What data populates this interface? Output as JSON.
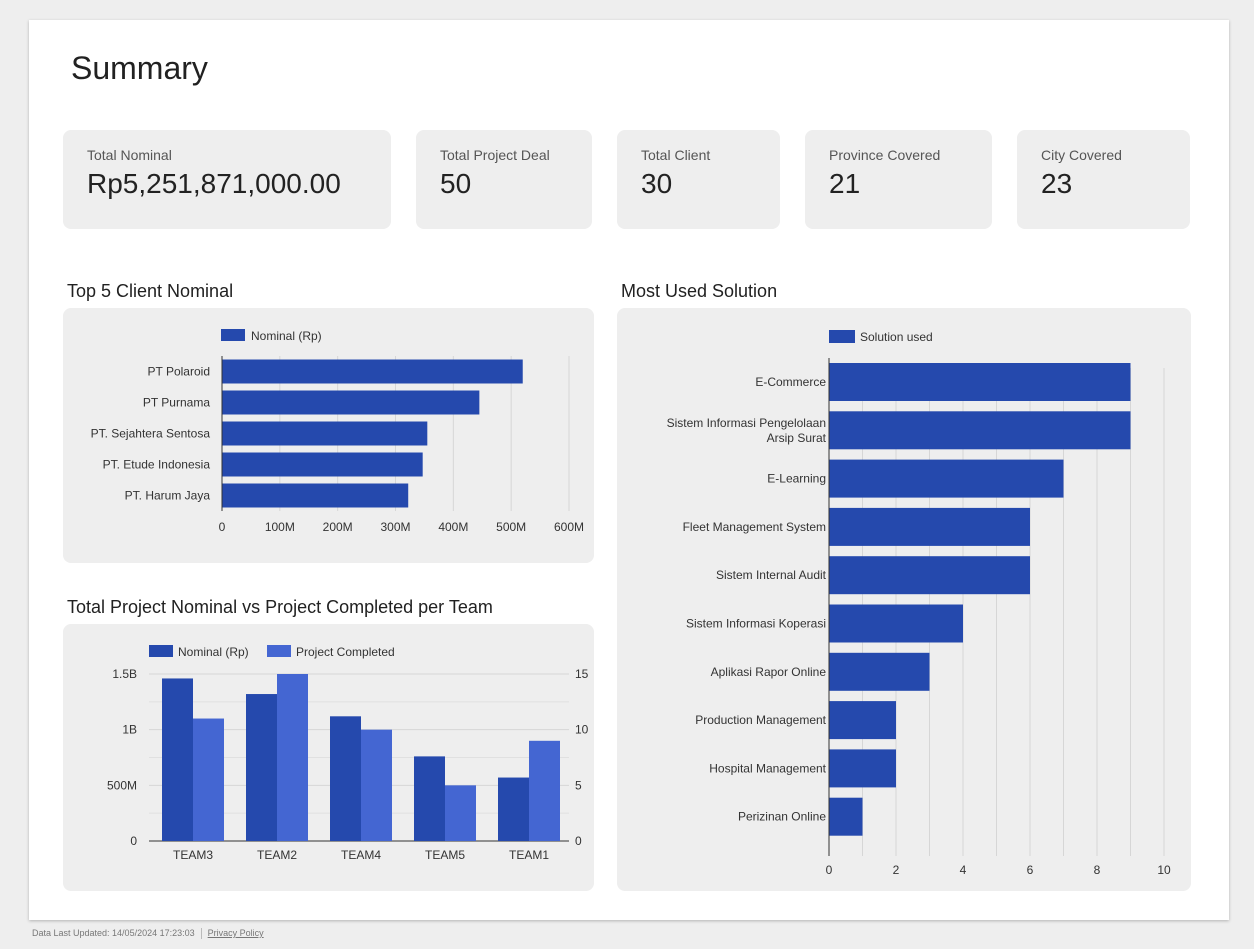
{
  "page": {
    "title": "Summary"
  },
  "kpis": [
    {
      "label": "Total Nominal",
      "value": "Rp5,251,871,000.00"
    },
    {
      "label": "Total Project Deal",
      "value": "50"
    },
    {
      "label": "Total Client",
      "value": "30"
    },
    {
      "label": "Province Covered",
      "value": "21"
    },
    {
      "label": "City Covered",
      "value": "23"
    }
  ],
  "sections": {
    "top_clients": "Top 5 Client Nominal",
    "team": "Total Project Nominal vs Project Completed per Team",
    "solutions": "Most Used Solution"
  },
  "colors": {
    "primary": "#2549ad",
    "secondary": "#4466d2",
    "grid": "#d6d6d6",
    "panel": "#eeeeee"
  },
  "footer": {
    "updated": "Data Last Updated: 14/05/2024 17:23:03",
    "privacy": "Privacy Policy"
  },
  "chart_data": [
    {
      "type": "bar",
      "orientation": "horizontal",
      "title": "Top 5 Client Nominal",
      "legend": [
        "Nominal (Rp)"
      ],
      "categories": [
        "PT Polaroid",
        "PT Purnama",
        "PT. Sejahtera Sentosa",
        "PT. Etude Indonesia",
        "PT. Harum Jaya"
      ],
      "values": [
        520000000,
        445000000,
        355000000,
        347000000,
        322000000
      ],
      "xlim": [
        0,
        600000000
      ],
      "ticks": [
        0,
        100000000,
        200000000,
        300000000,
        400000000,
        500000000,
        600000000
      ],
      "tick_labels": [
        "0",
        "100M",
        "200M",
        "300M",
        "400M",
        "500M",
        "600M"
      ]
    },
    {
      "type": "bar",
      "orientation": "vertical",
      "title": "Total Project Nominal vs Project Completed per Team",
      "categories": [
        "TEAM3",
        "TEAM2",
        "TEAM4",
        "TEAM5",
        "TEAM1"
      ],
      "series": [
        {
          "name": "Nominal (Rp)",
          "axis": "left",
          "values": [
            1460000000,
            1320000000,
            1120000000,
            760000000,
            570000000
          ]
        },
        {
          "name": "Project Completed",
          "axis": "right",
          "values": [
            11,
            15,
            10,
            5,
            9
          ]
        }
      ],
      "ylim_left": [
        0,
        1500000000
      ],
      "ylim_right": [
        0,
        15
      ],
      "left_ticks": [
        0,
        500000000,
        1000000000,
        1500000000
      ],
      "left_tick_labels": [
        "0",
        "500M",
        "1B",
        "1.5B"
      ],
      "right_ticks": [
        0,
        5,
        10,
        15
      ],
      "right_tick_labels": [
        "0",
        "5",
        "10",
        "15"
      ]
    },
    {
      "type": "bar",
      "orientation": "horizontal",
      "title": "Most Used Solution",
      "legend": [
        "Solution used"
      ],
      "categories": [
        [
          "E-Commerce"
        ],
        [
          "Sistem Informasi Pengelolaan",
          "Arsip Surat"
        ],
        [
          "E-Learning"
        ],
        [
          "Fleet Management System"
        ],
        [
          "Sistem Internal Audit"
        ],
        [
          "Sistem Informasi Koperasi"
        ],
        [
          "Aplikasi Rapor Online"
        ],
        [
          "Production Management"
        ],
        [
          "Hospital Management"
        ],
        [
          "Perizinan Online"
        ]
      ],
      "values": [
        9,
        9,
        7,
        6,
        6,
        4,
        3,
        2,
        2,
        1
      ],
      "xlim": [
        0,
        10
      ],
      "ticks": [
        0,
        2,
        4,
        6,
        8,
        10
      ],
      "tick_labels": [
        "0",
        "2",
        "4",
        "6",
        "8",
        "10"
      ]
    }
  ]
}
